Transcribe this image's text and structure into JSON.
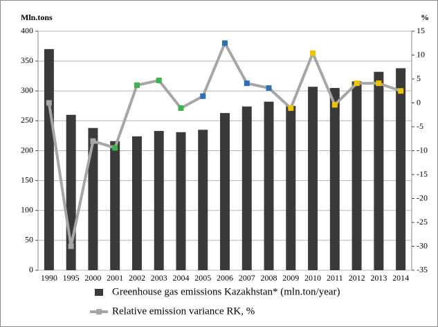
{
  "chart_data": {
    "type": "bar_line",
    "y_unit_label": "Mln.tons",
    "y2_unit_label": "%",
    "categories": [
      "1990",
      "1995",
      "2000",
      "2001",
      "2002",
      "2003",
      "2004",
      "2005",
      "2006",
      "2007",
      "2008",
      "2009",
      "2010",
      "2011",
      "2012",
      "2013",
      "2014"
    ],
    "series": [
      {
        "name": "Greenhouse gas emissions Kazakhstan* (mln.ton/year)",
        "type": "bar",
        "color": "#3a3a3a",
        "values": [
          370,
          260,
          238,
          216,
          224,
          233,
          231,
          235,
          263,
          274,
          282,
          275,
          307,
          305,
          316,
          332,
          338
        ]
      },
      {
        "name": "Relative emission variance RK, %",
        "type": "line",
        "axis": "y2",
        "color": "#a6a6a6",
        "values": [
          0,
          -30,
          -8,
          -9.4,
          3.7,
          4.7,
          -1.1,
          1.4,
          12.5,
          4.1,
          3.1,
          -1.1,
          10.4,
          -0.4,
          4.1,
          4.1,
          2.5
        ],
        "marker_colors": [
          "#a6a6a6",
          "#a6a6a6",
          "#a6a6a6",
          "#3cb44b",
          "#3cb44b",
          "#3cb44b",
          "#3cb44b",
          "#2e6fb7",
          "#2e6fb7",
          "#2e6fb7",
          "#2e6fb7",
          "#f2c200",
          "#f2c200",
          "#f2c200",
          "#f2c200",
          "#f2c200",
          "#f2c200"
        ]
      }
    ],
    "ylim": [
      0,
      400
    ],
    "yticks": [
      0,
      50,
      100,
      150,
      200,
      250,
      300,
      350,
      400
    ],
    "y2lim": [
      -35,
      15
    ],
    "y2ticks": [
      -35,
      -30,
      -25,
      -20,
      -15,
      -10,
      -5,
      0,
      5,
      10,
      15
    ],
    "grid": true
  }
}
